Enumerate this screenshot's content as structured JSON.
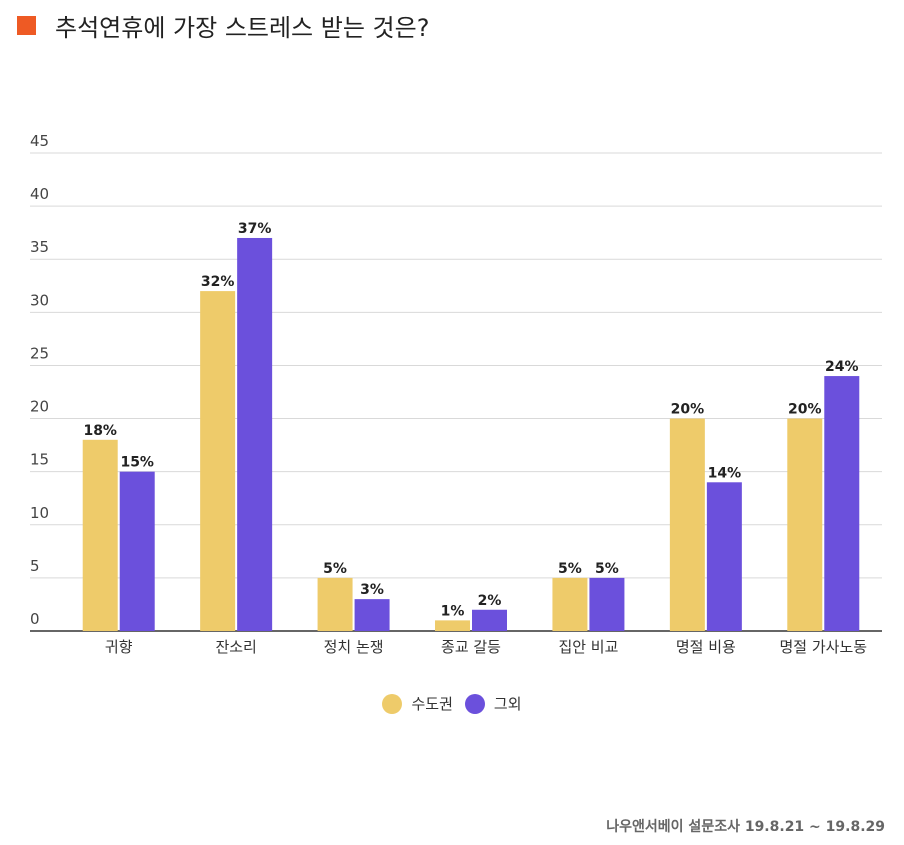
{
  "title": "추석연휴에 가장 스트레스 받는 것은?",
  "title_marker_color": "#ee5a24",
  "source": "나우앤서베이 설문조사 19.8.21 ~ 19.8.29",
  "chart_data": {
    "type": "bar",
    "categories": [
      "귀향",
      "잔소리",
      "정치 논쟁",
      "종교 갈등",
      "집안 비교",
      "명절 비용",
      "명절 가사노동"
    ],
    "series": [
      {
        "name": "수도권",
        "color": "#eecb6a",
        "values": [
          18,
          32,
          5,
          1,
          5,
          20,
          20
        ],
        "labels": [
          "18%",
          "32%",
          "5%",
          "1%",
          "5%",
          "20%",
          "20%"
        ]
      },
      {
        "name": "그외",
        "color": "#6b50dc",
        "values": [
          15,
          37,
          3,
          2,
          5,
          14,
          24
        ],
        "labels": [
          "15%",
          "37%",
          "3%",
          "2%",
          "5%",
          "14%",
          "24%"
        ]
      }
    ],
    "ylim": [
      0,
      45
    ],
    "yticks": [
      0,
      5,
      10,
      15,
      20,
      25,
      30,
      35,
      40,
      45
    ],
    "grid": true,
    "legend": "bottom-center"
  }
}
